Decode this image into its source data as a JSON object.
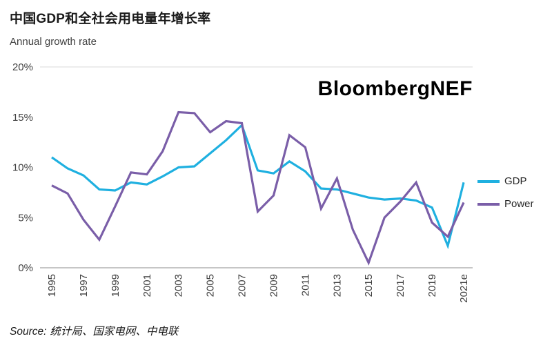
{
  "chart": {
    "title": "中国GDP和全社会用电量年增长率",
    "subtitle": "Annual growth rate",
    "watermark": "BloombergNEF",
    "source_prefix": "Source:",
    "source_text": "统计局、国家电网、中电联"
  },
  "chart_data": {
    "type": "line",
    "title": "中国GDP和全社会用电量年增长率",
    "subtitle": "Annual growth rate",
    "x": [
      1995,
      1996,
      1997,
      1998,
      1999,
      2000,
      2001,
      2002,
      2003,
      2004,
      2005,
      2006,
      2007,
      2008,
      2009,
      2010,
      2011,
      2012,
      2013,
      2014,
      2015,
      2016,
      2017,
      2018,
      2019,
      2020,
      "2021e"
    ],
    "x_tick_labels": [
      "1995",
      "1997",
      "1999",
      "2001",
      "2003",
      "2005",
      "2007",
      "2009",
      "2011",
      "2013",
      "2015",
      "2017",
      "2019",
      "2021e"
    ],
    "x_tick_indices": [
      0,
      2,
      4,
      6,
      8,
      10,
      12,
      14,
      16,
      18,
      20,
      22,
      24,
      26
    ],
    "y_ticks": [
      "0%",
      "5%",
      "10%",
      "15%",
      "20%"
    ],
    "y_tick_values": [
      0,
      5,
      10,
      15,
      20
    ],
    "ylim": [
      0,
      20
    ],
    "ylabel": "Annual growth rate (%)",
    "grid": "top-and-bottom-only",
    "legend_position": "right",
    "series": [
      {
        "name": "GDP",
        "color": "#1fb0e0",
        "values": [
          11.0,
          9.9,
          9.2,
          7.8,
          7.7,
          8.5,
          8.3,
          9.1,
          10.0,
          10.1,
          11.4,
          12.7,
          14.2,
          9.7,
          9.4,
          10.6,
          9.6,
          7.9,
          7.8,
          7.4,
          7.0,
          6.8,
          6.9,
          6.7,
          6.0,
          2.2,
          8.5
        ]
      },
      {
        "name": "Power",
        "color": "#7a5ea8",
        "values": [
          8.2,
          7.4,
          4.8,
          2.8,
          6.1,
          9.5,
          9.3,
          11.6,
          15.5,
          15.4,
          13.5,
          14.6,
          14.4,
          5.6,
          7.2,
          13.2,
          12.0,
          5.9,
          8.9,
          3.8,
          0.5,
          5.0,
          6.6,
          8.5,
          4.5,
          3.1,
          6.5
        ]
      }
    ]
  }
}
